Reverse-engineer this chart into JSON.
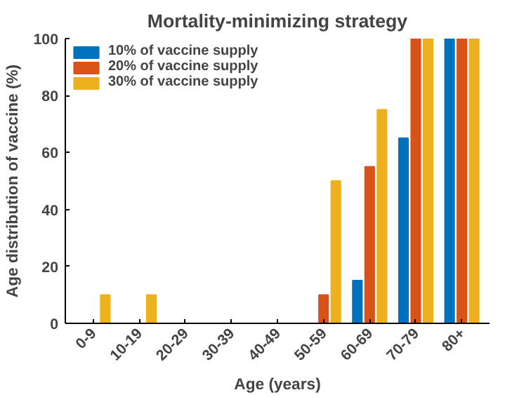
{
  "chart_data": {
    "type": "bar",
    "title": "Mortality-minimizing strategy",
    "xlabel": "Age (years)",
    "ylabel": "Age distribution of vaccine (%)",
    "categories": [
      "0-9",
      "10-19",
      "20-29",
      "30-39",
      "40-49",
      "50-59",
      "60-69",
      "70-79",
      "80+"
    ],
    "series": [
      {
        "name": "10% of vaccine supply",
        "color": "#0072bd",
        "values": [
          0,
          0,
          0,
          0,
          0,
          0,
          15,
          65,
          100
        ]
      },
      {
        "name": "20% of vaccine supply",
        "color": "#d95319",
        "values": [
          0,
          0,
          0,
          0,
          0,
          10,
          55,
          100,
          100
        ]
      },
      {
        "name": "30% of vaccine supply",
        "color": "#edb120",
        "values": [
          10,
          10,
          0,
          0,
          0,
          50,
          75,
          100,
          100
        ]
      }
    ],
    "ylim": [
      0,
      100
    ],
    "yticks": [
      0,
      20,
      40,
      60,
      80,
      100
    ],
    "grid": false,
    "legend": "top left"
  }
}
